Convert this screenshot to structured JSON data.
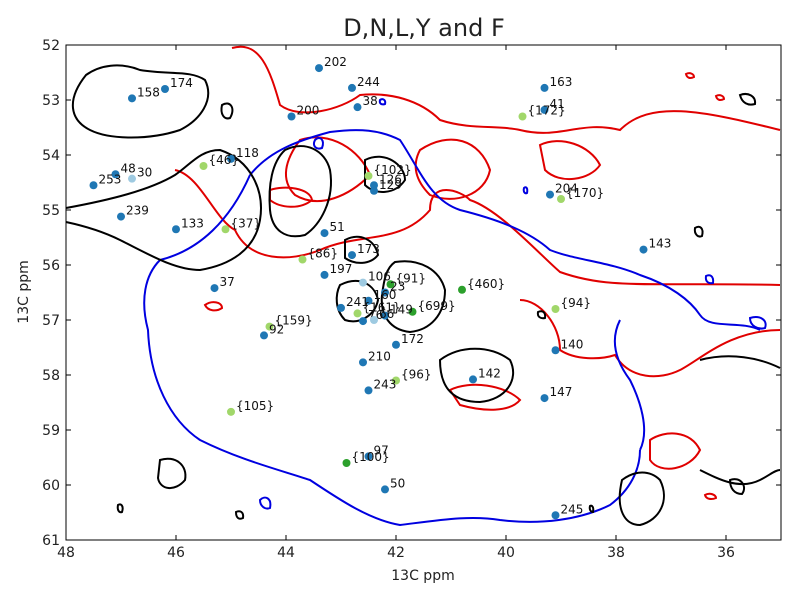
{
  "chart_data": {
    "type": "scatter",
    "title": "D,N,L,Y and F",
    "xlabel": "13C ppm",
    "ylabel": "13C ppm",
    "xlim": [
      48,
      35
    ],
    "ylim": [
      61,
      52
    ],
    "x_ticks": [
      48,
      46,
      44,
      42,
      40,
      38,
      36
    ],
    "y_ticks": [
      52,
      53,
      54,
      55,
      56,
      57,
      58,
      59,
      60,
      61
    ],
    "grid": false,
    "colors": {
      "dark": "#1f77b4",
      "light": "#9ecae1",
      "green_light": "#a1d76a",
      "green_dark": "#2ca02c",
      "contour_red": "#e00000",
      "contour_blue": "#0000e0",
      "contour_black": "#000000"
    },
    "points": [
      {
        "label": "202",
        "x": 43.4,
        "y": 52.42,
        "color": "dark"
      },
      {
        "label": "174",
        "x": 46.2,
        "y": 52.8,
        "color": "dark"
      },
      {
        "label": "244",
        "x": 42.8,
        "y": 52.78,
        "color": "dark"
      },
      {
        "label": "163",
        "x": 39.3,
        "y": 52.78,
        "color": "dark"
      },
      {
        "label": "158",
        "x": 46.8,
        "y": 52.97,
        "color": "dark"
      },
      {
        "label": "38",
        "x": 42.7,
        "y": 53.13,
        "color": "dark"
      },
      {
        "label": "41",
        "x": 39.3,
        "y": 53.18,
        "color": "dark"
      },
      {
        "label": "{172}",
        "x": 39.7,
        "y": 53.3,
        "color": "green_light"
      },
      {
        "label": "200",
        "x": 43.9,
        "y": 53.3,
        "color": "dark"
      },
      {
        "label": "118",
        "x": 45.0,
        "y": 54.07,
        "color": "dark"
      },
      {
        "label": "{46}",
        "x": 45.5,
        "y": 54.2,
        "color": "green_light"
      },
      {
        "label": "48",
        "x": 47.1,
        "y": 54.35,
        "color": "dark"
      },
      {
        "label": "30",
        "x": 46.8,
        "y": 54.43,
        "color": "light"
      },
      {
        "label": "{102}",
        "x": 42.5,
        "y": 54.38,
        "color": "green_light"
      },
      {
        "label": "126",
        "x": 42.4,
        "y": 54.55,
        "color": "dark"
      },
      {
        "label": "253",
        "x": 47.5,
        "y": 54.55,
        "color": "dark"
      },
      {
        "label": "129",
        "x": 42.4,
        "y": 54.65,
        "color": "dark"
      },
      {
        "label": "204",
        "x": 39.2,
        "y": 54.72,
        "color": "dark"
      },
      {
        "label": "{170}",
        "x": 39.0,
        "y": 54.8,
        "color": "green_light"
      },
      {
        "label": "239",
        "x": 47.0,
        "y": 55.12,
        "color": "dark"
      },
      {
        "label": "133",
        "x": 46.0,
        "y": 55.35,
        "color": "dark"
      },
      {
        "label": "{37}",
        "x": 45.1,
        "y": 55.35,
        "color": "green_light"
      },
      {
        "label": "51",
        "x": 43.3,
        "y": 55.42,
        "color": "dark"
      },
      {
        "label": "143",
        "x": 37.5,
        "y": 55.72,
        "color": "dark"
      },
      {
        "label": "173",
        "x": 42.8,
        "y": 55.82,
        "color": "dark"
      },
      {
        "label": "{86}",
        "x": 43.7,
        "y": 55.9,
        "color": "green_light"
      },
      {
        "label": "197",
        "x": 43.3,
        "y": 56.18,
        "color": "dark"
      },
      {
        "label": "106",
        "x": 42.6,
        "y": 56.32,
        "color": "light"
      },
      {
        "label": "{91}",
        "x": 42.1,
        "y": 56.35,
        "color": "green_dark"
      },
      {
        "label": "37",
        "x": 45.3,
        "y": 56.42,
        "color": "dark"
      },
      {
        "label": "{460}",
        "x": 40.8,
        "y": 56.45,
        "color": "green_dark"
      },
      {
        "label": "23",
        "x": 42.2,
        "y": 56.5,
        "color": "dark"
      },
      {
        "label": "160",
        "x": 42.5,
        "y": 56.65,
        "color": "dark"
      },
      {
        "label": "241",
        "x": 43.0,
        "y": 56.78,
        "color": "dark"
      },
      {
        "label": "{94}",
        "x": 39.1,
        "y": 56.8,
        "color": "green_light"
      },
      {
        "label": "{699}",
        "x": 41.7,
        "y": 56.85,
        "color": "green_dark"
      },
      {
        "label": "{161}",
        "x": 42.7,
        "y": 56.88,
        "color": "green_light"
      },
      {
        "label": "149",
        "x": 42.2,
        "y": 56.92,
        "color": "dark"
      },
      {
        "label": "76",
        "x": 42.6,
        "y": 57.02,
        "color": "dark"
      },
      {
        "label": "66",
        "x": 42.4,
        "y": 57.0,
        "color": "light"
      },
      {
        "label": "{159}",
        "x": 44.3,
        "y": 57.12,
        "color": "green_light"
      },
      {
        "label": "92",
        "x": 44.4,
        "y": 57.28,
        "color": "dark"
      },
      {
        "label": "172",
        "x": 42.0,
        "y": 57.45,
        "color": "dark"
      },
      {
        "label": "140",
        "x": 39.1,
        "y": 57.55,
        "color": "dark"
      },
      {
        "label": "210",
        "x": 42.6,
        "y": 57.77,
        "color": "dark"
      },
      {
        "label": "{96}",
        "x": 42.0,
        "y": 58.1,
        "color": "green_light"
      },
      {
        "label": "142",
        "x": 40.6,
        "y": 58.08,
        "color": "dark"
      },
      {
        "label": "243",
        "x": 42.5,
        "y": 58.28,
        "color": "dark"
      },
      {
        "label": "147",
        "x": 39.3,
        "y": 58.42,
        "color": "dark"
      },
      {
        "label": "{105}",
        "x": 45.0,
        "y": 58.67,
        "color": "green_light"
      },
      {
        "label": "97",
        "x": 42.5,
        "y": 59.48,
        "color": "dark"
      },
      {
        "label": "{100}",
        "x": 42.9,
        "y": 59.6,
        "color": "green_dark"
      },
      {
        "label": "50",
        "x": 42.2,
        "y": 60.08,
        "color": "dark"
      },
      {
        "label": "245",
        "x": 39.1,
        "y": 60.55,
        "color": "dark"
      }
    ]
  }
}
